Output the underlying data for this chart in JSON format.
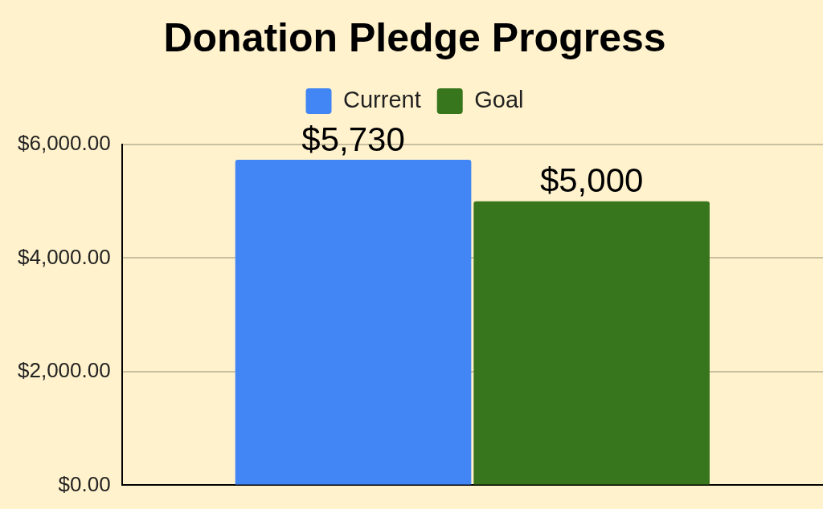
{
  "chart_data": {
    "type": "bar",
    "title": "Donation Pledge Progress",
    "categories": [
      null
    ],
    "series": [
      {
        "name": "Current",
        "color": "#4285f4",
        "values": [
          5730
        ],
        "value_labels": [
          "$5,730"
        ]
      },
      {
        "name": "Goal",
        "color": "#38761d",
        "values": [
          5000
        ],
        "value_labels": [
          "$5,000"
        ]
      }
    ],
    "ylim": [
      0,
      6000
    ],
    "yticks": [
      {
        "value": 0,
        "label": "$0.00"
      },
      {
        "value": 2000,
        "label": "$2,000.00"
      },
      {
        "value": 4000,
        "label": "$4,000.00"
      },
      {
        "value": 6000,
        "label": "$6,000.00"
      }
    ],
    "grid": "y",
    "legend": "top",
    "tick_labels": "y"
  }
}
